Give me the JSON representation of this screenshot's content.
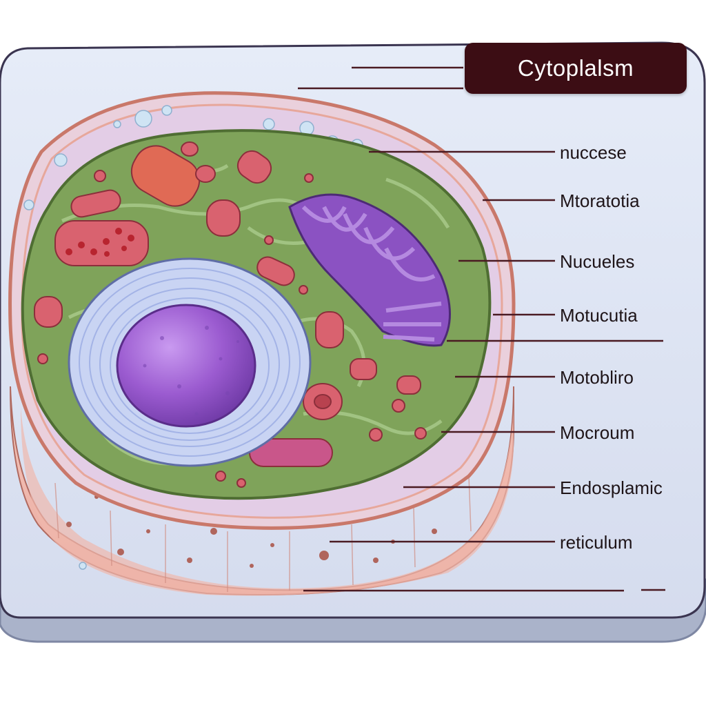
{
  "diagram": {
    "title": "Cytoplalsm",
    "labels": [
      {
        "text": "nuccese"
      },
      {
        "text": "Mtoratotia"
      },
      {
        "text": "Nucueles"
      },
      {
        "text": "Motucutia"
      },
      {
        "text": "Motobliro"
      },
      {
        "text": "Mocroum"
      },
      {
        "text": "Endosplamic"
      },
      {
        "text": "reticulum"
      }
    ]
  },
  "colors": {
    "panel": "#dfe6f4",
    "panel_edge": "#9aa4bf",
    "membrane": "#e8a89a",
    "cytoplasm": "#7fa35a",
    "nucleus": "#9b5bd0",
    "organelle": "#d9626f",
    "golgi": "#8b52c2",
    "leader_line": "#4a1a22",
    "title_bg": "#3c0d14"
  }
}
